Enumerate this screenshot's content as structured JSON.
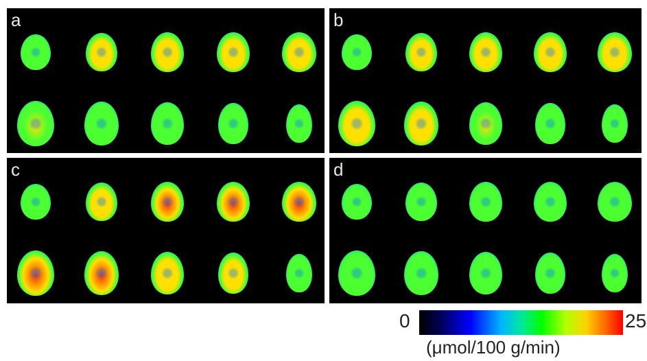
{
  "panels": [
    {
      "label": "a",
      "palette": [
        "#1a3cff",
        "#00d2c8",
        "#4cff30",
        "#ffe000",
        "#ff3000"
      ],
      "intensity": [
        [
          0.62,
          0.72,
          0.76,
          0.72,
          0.72
        ],
        [
          0.68,
          0.64,
          0.56,
          0.48,
          0.42
        ]
      ]
    },
    {
      "label": "b",
      "palette": [
        "#1a3cff",
        "#00d2c8",
        "#4cff30",
        "#ffe000",
        "#ff3000"
      ],
      "intensity": [
        [
          0.62,
          0.72,
          0.76,
          0.78,
          0.8
        ],
        [
          0.8,
          0.74,
          0.66,
          0.58,
          0.5
        ]
      ]
    },
    {
      "label": "c",
      "palette": [
        "#1a3cff",
        "#00d2c8",
        "#4cff30",
        "#ffe000",
        "#ff3000"
      ],
      "intensity": [
        [
          0.64,
          0.74,
          0.82,
          0.86,
          0.9
        ],
        [
          0.92,
          0.86,
          0.8,
          0.72,
          0.62
        ]
      ]
    },
    {
      "label": "d",
      "palette": [
        "#1a3cff",
        "#00d2c8",
        "#4cff30",
        "#ffe000",
        "#ff3000"
      ],
      "intensity": [
        [
          0.42,
          0.48,
          0.52,
          0.52,
          0.56
        ],
        [
          0.48,
          0.48,
          0.46,
          0.42,
          0.4
        ]
      ]
    }
  ],
  "colorbar": {
    "min_label": "0",
    "max_label": "25",
    "unit_label": "(μmol/100 g/min)"
  }
}
